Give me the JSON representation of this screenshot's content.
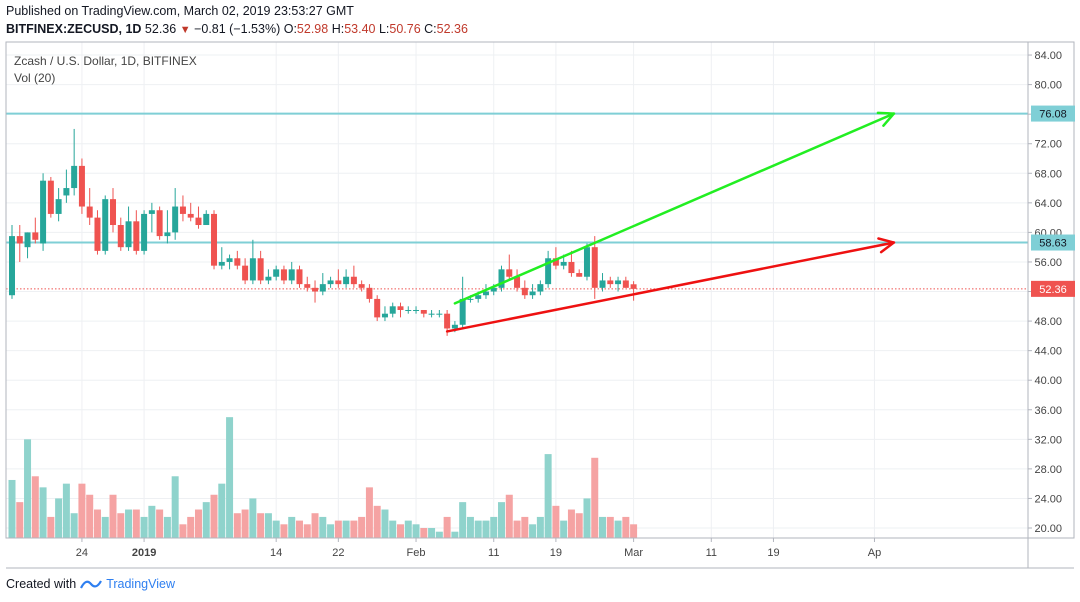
{
  "header": {
    "published": "Published on TradingView.com, March 02, 2019 23:53:27 GMT",
    "symbol": "BITFINEX:ZECUSD, 1D",
    "last": "52.36",
    "change_arrow": "▼",
    "change": "−0.81 (−1.53%)",
    "o_label": "O:",
    "o": "52.98",
    "h_label": "H:",
    "h": "53.40",
    "l_label": "L:",
    "l": "50.76",
    "c_label": "C:",
    "c": "52.36"
  },
  "footer": {
    "created_with": "Created with",
    "brand": "TradingView",
    "logo_icon": "tradingview-logo-icon"
  },
  "colors": {
    "up": "#26a69a",
    "down": "#ef5350",
    "vol_up": "#8fd3cc",
    "vol_down": "#f5a3a3",
    "hline": "#7fcfd6",
    "green_arrow": "#22ee22",
    "red_arrow": "#ee1111",
    "price_line": "#ef5350"
  },
  "chart_data": {
    "type": "candlestick",
    "title": "Zcash / U.S. Dollar, 1D, BITFINEX",
    "volume_label": "Vol (20)",
    "y_ticks": [
      20,
      24,
      28,
      32,
      36,
      40,
      44,
      48,
      52,
      56,
      60,
      64,
      68,
      72,
      76,
      80,
      84
    ],
    "y_tick_labels": [
      "20.00",
      "24.00",
      "28.00",
      "32.00",
      "36.00",
      "40.00",
      "44.00",
      "48.00",
      "52.00",
      "56.00",
      "60.00",
      "64.00",
      "68.00",
      "72.00",
      "76.00",
      "80.00",
      "84.00"
    ],
    "ylim": [
      18.5,
      86
    ],
    "x_ticks": [
      {
        "label": "24",
        "bar": 9
      },
      {
        "label": "2019",
        "bar": 17,
        "bold": true
      },
      {
        "label": "14",
        "bar": 34
      },
      {
        "label": "22",
        "bar": 42
      },
      {
        "label": "Feb",
        "bar": 52
      },
      {
        "label": "11",
        "bar": 62
      },
      {
        "label": "19",
        "bar": 70
      },
      {
        "label": "Mar",
        "bar": 80
      },
      {
        "label": "11",
        "bar": 90
      },
      {
        "label": "19",
        "bar": 98
      },
      {
        "label": "Ap",
        "bar": 111
      }
    ],
    "horizontal_lines": [
      {
        "value": 76.08,
        "label": "76.08"
      },
      {
        "value": 58.63,
        "label": "58.63"
      }
    ],
    "last_price": {
      "value": 52.36,
      "label": "52.36"
    },
    "trend_lines": [
      {
        "name": "green",
        "from": {
          "bar": 57,
          "value": 50.4
        },
        "to": {
          "bar": 113.5,
          "value": 76.08
        }
      },
      {
        "name": "red",
        "from": {
          "bar": 56,
          "value": 46.6
        },
        "to": {
          "bar": 113.5,
          "value": 58.63
        }
      }
    ],
    "candles": [
      {
        "o": 51.5,
        "h": 61,
        "l": 51,
        "c": 59.5,
        "v": 26.5
      },
      {
        "o": 59.5,
        "h": 61,
        "l": 56,
        "c": 58.5,
        "v": 23.5
      },
      {
        "o": 58,
        "h": 60,
        "l": 56.5,
        "c": 60,
        "v": 32
      },
      {
        "o": 60,
        "h": 62,
        "l": 58.5,
        "c": 59,
        "v": 27
      },
      {
        "o": 58.5,
        "h": 68,
        "l": 57.5,
        "c": 67,
        "v": 25.5
      },
      {
        "o": 67,
        "h": 67.5,
        "l": 62,
        "c": 62.5,
        "v": 21.5
      },
      {
        "o": 62.5,
        "h": 66,
        "l": 61.5,
        "c": 64.5,
        "v": 24
      },
      {
        "o": 65,
        "h": 68.5,
        "l": 64,
        "c": 66,
        "v": 26
      },
      {
        "o": 66,
        "h": 74,
        "l": 65,
        "c": 69,
        "v": 22
      },
      {
        "o": 69,
        "h": 70,
        "l": 62.5,
        "c": 63.5,
        "v": 26
      },
      {
        "o": 63.5,
        "h": 66,
        "l": 61,
        "c": 62,
        "v": 24.5
      },
      {
        "o": 62,
        "h": 63,
        "l": 57,
        "c": 57.5,
        "v": 22.5
      },
      {
        "o": 57.5,
        "h": 65,
        "l": 57,
        "c": 64.5,
        "v": 21.5
      },
      {
        "o": 64.5,
        "h": 66,
        "l": 60,
        "c": 61,
        "v": 24.5
      },
      {
        "o": 61,
        "h": 62,
        "l": 57.5,
        "c": 58,
        "v": 22
      },
      {
        "o": 58,
        "h": 63.5,
        "l": 57.5,
        "c": 61.5,
        "v": 22.5
      },
      {
        "o": 61.5,
        "h": 63,
        "l": 57,
        "c": 57.5,
        "v": 22.5
      },
      {
        "o": 57.5,
        "h": 63,
        "l": 57,
        "c": 62.5,
        "v": 21.5
      },
      {
        "o": 62.5,
        "h": 64,
        "l": 60,
        "c": 63,
        "v": 23
      },
      {
        "o": 63,
        "h": 63.5,
        "l": 59,
        "c": 59.5,
        "v": 22.5
      },
      {
        "o": 59.5,
        "h": 63,
        "l": 58.5,
        "c": 60,
        "v": 21.5
      },
      {
        "o": 60,
        "h": 66,
        "l": 59,
        "c": 63.5,
        "v": 27
      },
      {
        "o": 63.5,
        "h": 65,
        "l": 61.5,
        "c": 62.5,
        "v": 20.5
      },
      {
        "o": 62.5,
        "h": 64,
        "l": 61.5,
        "c": 62,
        "v": 21.5
      },
      {
        "o": 62,
        "h": 63.5,
        "l": 60.5,
        "c": 61,
        "v": 22.5
      },
      {
        "o": 61,
        "h": 63,
        "l": 61,
        "c": 62.5,
        "v": 23.5
      },
      {
        "o": 62.5,
        "h": 63,
        "l": 55,
        "c": 55.5,
        "v": 24.5
      },
      {
        "o": 55.5,
        "h": 58,
        "l": 55,
        "c": 56,
        "v": 26
      },
      {
        "o": 56,
        "h": 57,
        "l": 55,
        "c": 56.5,
        "v": 35
      },
      {
        "o": 56.5,
        "h": 57.5,
        "l": 55,
        "c": 55.5,
        "v": 22
      },
      {
        "o": 55.5,
        "h": 56.5,
        "l": 53,
        "c": 53.5,
        "v": 22.5
      },
      {
        "o": 53.5,
        "h": 59,
        "l": 53,
        "c": 56.5,
        "v": 24
      },
      {
        "o": 56.5,
        "h": 57.5,
        "l": 53,
        "c": 53.5,
        "v": 22
      },
      {
        "o": 53.5,
        "h": 55,
        "l": 53,
        "c": 54,
        "v": 22
      },
      {
        "o": 54,
        "h": 55.5,
        "l": 53.5,
        "c": 55,
        "v": 21
      },
      {
        "o": 55,
        "h": 55.5,
        "l": 53,
        "c": 53.5,
        "v": 20.5
      },
      {
        "o": 53.5,
        "h": 56,
        "l": 53,
        "c": 55,
        "v": 21.5
      },
      {
        "o": 55,
        "h": 55.5,
        "l": 52.5,
        "c": 53,
        "v": 21
      },
      {
        "o": 53,
        "h": 54,
        "l": 52,
        "c": 52.5,
        "v": 20.5
      },
      {
        "o": 52.5,
        "h": 53.5,
        "l": 50.5,
        "c": 52,
        "v": 22
      },
      {
        "o": 52,
        "h": 54.5,
        "l": 51.5,
        "c": 53,
        "v": 21.5
      },
      {
        "o": 53,
        "h": 54,
        "l": 52.5,
        "c": 53.5,
        "v": 20.5
      },
      {
        "o": 53.5,
        "h": 55,
        "l": 52.5,
        "c": 53,
        "v": 21
      },
      {
        "o": 53,
        "h": 55,
        "l": 52.5,
        "c": 54,
        "v": 21
      },
      {
        "o": 54,
        "h": 55.5,
        "l": 52.5,
        "c": 53,
        "v": 21
      },
      {
        "o": 53,
        "h": 53.5,
        "l": 52,
        "c": 52.5,
        "v": 21.5
      },
      {
        "o": 52.5,
        "h": 53,
        "l": 50.5,
        "c": 51,
        "v": 25.5
      },
      {
        "o": 51,
        "h": 51.5,
        "l": 48,
        "c": 48.5,
        "v": 23
      },
      {
        "o": 48.5,
        "h": 50,
        "l": 48,
        "c": 49,
        "v": 22.5
      },
      {
        "o": 49,
        "h": 50.5,
        "l": 48.5,
        "c": 50,
        "v": 21
      },
      {
        "o": 50,
        "h": 50.5,
        "l": 48.5,
        "c": 49.5,
        "v": 20.5
      },
      {
        "o": 49.5,
        "h": 50,
        "l": 49,
        "c": 49.5,
        "v": 21
      },
      {
        "o": 49.5,
        "h": 50,
        "l": 49,
        "c": 49.5,
        "v": 20.5
      },
      {
        "o": 49.5,
        "h": 49.5,
        "l": 48.5,
        "c": 49,
        "v": 20
      },
      {
        "o": 49,
        "h": 49.5,
        "l": 48.5,
        "c": 49,
        "v": 20
      },
      {
        "o": 49,
        "h": 49.5,
        "l": 48.5,
        "c": 49,
        "v": 19.5
      },
      {
        "o": 49,
        "h": 49.5,
        "l": 46,
        "c": 47,
        "v": 21.5
      },
      {
        "o": 47,
        "h": 48,
        "l": 46.5,
        "c": 47.5,
        "v": 19.5
      },
      {
        "o": 47.5,
        "h": 54,
        "l": 47,
        "c": 51,
        "v": 23.5
      },
      {
        "o": 51,
        "h": 51.5,
        "l": 50.5,
        "c": 51,
        "v": 21.5
      },
      {
        "o": 51,
        "h": 52,
        "l": 50.5,
        "c": 51.5,
        "v": 21
      },
      {
        "o": 51.5,
        "h": 53,
        "l": 51,
        "c": 52,
        "v": 21
      },
      {
        "o": 52,
        "h": 53,
        "l": 51.5,
        "c": 52.5,
        "v": 21.5
      },
      {
        "o": 52.5,
        "h": 55.5,
        "l": 52,
        "c": 55,
        "v": 23.5
      },
      {
        "o": 55,
        "h": 57,
        "l": 53.5,
        "c": 54,
        "v": 24.5
      },
      {
        "o": 54,
        "h": 55,
        "l": 52,
        "c": 52.5,
        "v": 21
      },
      {
        "o": 52.5,
        "h": 53.5,
        "l": 51,
        "c": 51.5,
        "v": 21.5
      },
      {
        "o": 51.5,
        "h": 53,
        "l": 51,
        "c": 52,
        "v": 20.5
      },
      {
        "o": 52,
        "h": 53.5,
        "l": 51.5,
        "c": 53,
        "v": 21.5
      },
      {
        "o": 53,
        "h": 57.5,
        "l": 52.5,
        "c": 56.5,
        "v": 30
      },
      {
        "o": 56.5,
        "h": 58,
        "l": 55,
        "c": 55.5,
        "v": 23
      },
      {
        "o": 55.5,
        "h": 57,
        "l": 55,
        "c": 56,
        "v": 21
      },
      {
        "o": 56,
        "h": 57.5,
        "l": 54,
        "c": 54.5,
        "v": 22.5
      },
      {
        "o": 54.5,
        "h": 55,
        "l": 54,
        "c": 54,
        "v": 22
      },
      {
        "o": 54,
        "h": 58.5,
        "l": 53.5,
        "c": 58,
        "v": 24
      },
      {
        "o": 58,
        "h": 59.5,
        "l": 51,
        "c": 52.5,
        "v": 29.5
      },
      {
        "o": 52.5,
        "h": 54.5,
        "l": 52,
        "c": 53.5,
        "v": 21.5
      },
      {
        "o": 53.5,
        "h": 54,
        "l": 52.5,
        "c": 53,
        "v": 21.5
      },
      {
        "o": 53,
        "h": 54,
        "l": 52,
        "c": 53.5,
        "v": 21
      },
      {
        "o": 53.5,
        "h": 54,
        "l": 52.5,
        "c": 52.5,
        "v": 21.5
      },
      {
        "o": 52.98,
        "h": 53.4,
        "l": 50.76,
        "c": 52.36,
        "v": 20.5
      }
    ]
  }
}
